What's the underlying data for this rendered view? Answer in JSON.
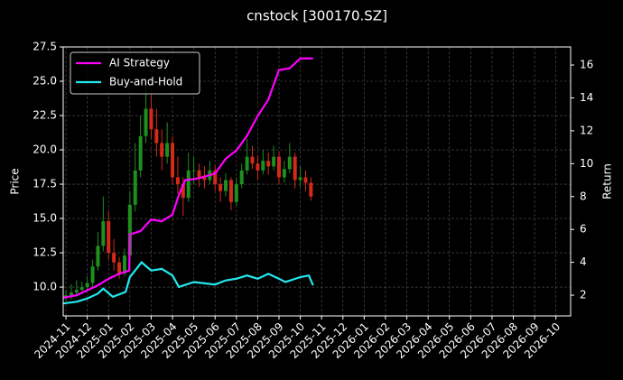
{
  "chart_data": {
    "type": "candlestick",
    "title": "cnstock [300170.SZ]",
    "ylabel": "Price",
    "y2label": "Return",
    "up_color": "#1f8f1f",
    "down_color": "#d42a1a",
    "grid": true,
    "legend": "upper left",
    "candles": {
      "x": [
        0,
        0.25,
        0.5,
        0.75,
        1,
        1.25,
        1.5,
        1.75,
        2,
        2.25,
        2.5,
        2.75,
        3,
        3.25,
        3.5,
        3.75,
        4,
        4.25,
        4.5,
        4.75,
        5,
        5.25,
        5.5,
        5.75,
        6,
        6.25,
        6.5,
        6.75,
        7,
        7.25,
        7.5,
        7.75,
        8,
        8.25,
        8.5,
        8.75,
        9,
        9.25,
        9.5,
        9.75,
        10,
        10.25,
        10.5,
        10.75,
        11,
        11.25,
        11.5
      ],
      "open": [
        9.2,
        9.4,
        9.6,
        9.8,
        10.0,
        10.3,
        11.5,
        13.0,
        14.8,
        12.5,
        11.8,
        11.0,
        12.3,
        16.0,
        18.5,
        21.0,
        23.0,
        21.5,
        20.5,
        19.5,
        20.5,
        18.0,
        17.5,
        16.5,
        18.5,
        18.5,
        18.0,
        17.8,
        18.5,
        17.5,
        17.0,
        17.8,
        16.2,
        17.5,
        18.5,
        19.5,
        19.0,
        18.5,
        19.2,
        18.8,
        19.5,
        18.0,
        18.6,
        19.5,
        17.8,
        18.0,
        17.6
      ],
      "high": [
        9.8,
        10.2,
        10.5,
        10.4,
        10.8,
        12.0,
        14.0,
        16.6,
        15.5,
        13.5,
        12.2,
        12.8,
        17.0,
        20.5,
        22.5,
        25.0,
        24.0,
        23.0,
        21.5,
        22.0,
        21.0,
        19.5,
        18.0,
        19.8,
        19.5,
        19.0,
        18.8,
        19.2,
        18.9,
        18.0,
        18.3,
        18.0,
        18.0,
        19.0,
        20.8,
        20.3,
        19.6,
        20.0,
        19.8,
        20.3,
        19.9,
        19.2,
        20.5,
        19.8,
        18.8,
        18.5,
        18.0
      ],
      "low": [
        9.0,
        9.1,
        9.3,
        9.5,
        9.7,
        10.0,
        11.2,
        12.6,
        12.0,
        11.2,
        10.6,
        10.8,
        12.0,
        15.5,
        18.0,
        20.5,
        20.8,
        19.5,
        18.5,
        19.0,
        17.5,
        16.8,
        15.2,
        16.2,
        17.5,
        17.3,
        17.2,
        17.5,
        17.0,
        16.2,
        16.6,
        15.6,
        15.9,
        17.2,
        18.2,
        18.6,
        17.8,
        18.2,
        18.2,
        18.5,
        17.5,
        17.6,
        18.3,
        17.2,
        17.3,
        17.0,
        16.3
      ],
      "close": [
        9.4,
        9.6,
        9.8,
        10.0,
        10.3,
        11.5,
        13.0,
        14.8,
        12.5,
        11.8,
        11.0,
        12.3,
        16.0,
        18.5,
        21.0,
        23.0,
        21.5,
        20.5,
        19.5,
        20.5,
        18.0,
        17.5,
        16.5,
        18.5,
        18.5,
        18.0,
        17.8,
        18.5,
        17.5,
        17.0,
        17.8,
        16.2,
        17.5,
        18.5,
        19.5,
        19.0,
        18.5,
        19.2,
        18.8,
        19.5,
        18.0,
        18.6,
        19.5,
        17.8,
        18.0,
        17.6,
        16.6
      ]
    },
    "series": [
      {
        "name": "AI Strategy",
        "color": "#ff00ff",
        "axis": "y2",
        "x": [
          -0.13,
          0.5,
          1,
          1.5,
          2,
          2.5,
          2.97,
          3.0,
          3.5,
          4,
          4.5,
          5,
          5.3,
          5.6,
          6.2,
          7,
          7.5,
          8,
          8.5,
          9,
          9.5,
          10,
          10.5,
          11,
          11.6
        ],
        "values": [
          1.84,
          2.0,
          2.3,
          2.6,
          3.0,
          3.3,
          3.5,
          5.7,
          5.9,
          6.6,
          6.5,
          6.9,
          8.1,
          9.0,
          9.1,
          9.4,
          10.3,
          10.8,
          11.7,
          12.9,
          13.9,
          15.7,
          15.8,
          16.4,
          16.4
        ]
      },
      {
        "name": "Buy-and-Hold",
        "color": "#22e8ee",
        "axis": "y2",
        "x": [
          -0.13,
          0.5,
          1,
          1.5,
          1.75,
          2.2,
          2.8,
          3.0,
          3.55,
          4,
          4.5,
          5,
          5.3,
          6,
          7,
          7.5,
          8,
          8.5,
          9,
          9.5,
          10,
          10.3,
          11,
          11.4,
          11.6
        ],
        "values": [
          1.5,
          1.6,
          1.8,
          2.1,
          2.4,
          1.9,
          2.2,
          3.1,
          4.0,
          3.5,
          3.6,
          3.2,
          2.5,
          2.8,
          2.65,
          2.9,
          3.0,
          3.2,
          3.0,
          3.3,
          3.0,
          2.8,
          3.1,
          3.2,
          2.6
        ]
      }
    ],
    "xlim": [
      -0.13,
      23.69
    ],
    "xticks": [
      {
        "value": 0,
        "label": "2024-11"
      },
      {
        "value": 1,
        "label": "2024-12"
      },
      {
        "value": 2,
        "label": "2025-01"
      },
      {
        "value": 3,
        "label": "2025-02"
      },
      {
        "value": 4,
        "label": "2025-03"
      },
      {
        "value": 5,
        "label": "2025-04"
      },
      {
        "value": 6,
        "label": "2025-05"
      },
      {
        "value": 7,
        "label": "2025-06"
      },
      {
        "value": 8,
        "label": "2025-07"
      },
      {
        "value": 9,
        "label": "2025-08"
      },
      {
        "value": 10,
        "label": "2025-09"
      },
      {
        "value": 11,
        "label": "2025-10"
      },
      {
        "value": 12,
        "label": "2025-11"
      },
      {
        "value": 13,
        "label": "2025-12"
      },
      {
        "value": 14,
        "label": "2026-01"
      },
      {
        "value": 15,
        "label": "2026-02"
      },
      {
        "value": 16,
        "label": "2026-03"
      },
      {
        "value": 17,
        "label": "2026-04"
      },
      {
        "value": 18,
        "label": "2026-05"
      },
      {
        "value": 19,
        "label": "2026-06"
      },
      {
        "value": 20,
        "label": "2026-07"
      },
      {
        "value": 21,
        "label": "2026-08"
      },
      {
        "value": 22,
        "label": "2026-09"
      },
      {
        "value": 23,
        "label": "2026-10"
      }
    ],
    "ylim": [
      7.9,
      27.5
    ],
    "yticks": [
      {
        "value": 10,
        "label": "10.0"
      },
      12.5,
      {
        "value": 15,
        "label": "15.0"
      },
      17.5,
      {
        "value": 20,
        "label": "20.0"
      },
      22.5,
      {
        "value": 25,
        "label": "25.0"
      },
      27.5
    ],
    "y2lim": [
      0.74,
      17.1
    ],
    "y2ticks": [
      2,
      4,
      6,
      8,
      10,
      12,
      14,
      16
    ]
  }
}
